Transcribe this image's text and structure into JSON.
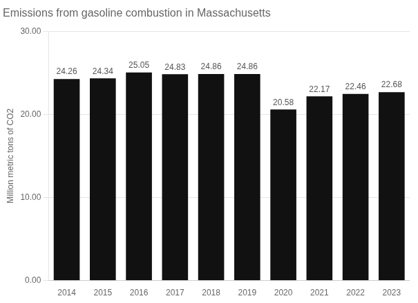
{
  "chart_data": {
    "type": "bar",
    "title": "Emissions from gasoline combustion in Massachusetts",
    "ylabel": "Million metric tons of CO2",
    "categories": [
      "2014",
      "2015",
      "2016",
      "2017",
      "2018",
      "2019",
      "2020",
      "2021",
      "2022",
      "2023"
    ],
    "values": [
      24.26,
      24.34,
      25.05,
      24.83,
      24.86,
      24.86,
      20.58,
      22.17,
      22.46,
      22.68
    ],
    "color": "#111111",
    "ylim": [
      0,
      30
    ],
    "yticks": [
      {
        "value": 0,
        "label": "0.00"
      },
      {
        "value": 10,
        "label": "10.00"
      },
      {
        "value": 20,
        "label": "20.00"
      },
      {
        "value": 30,
        "label": "30.00"
      }
    ],
    "grid": true,
    "data_labels": true
  }
}
